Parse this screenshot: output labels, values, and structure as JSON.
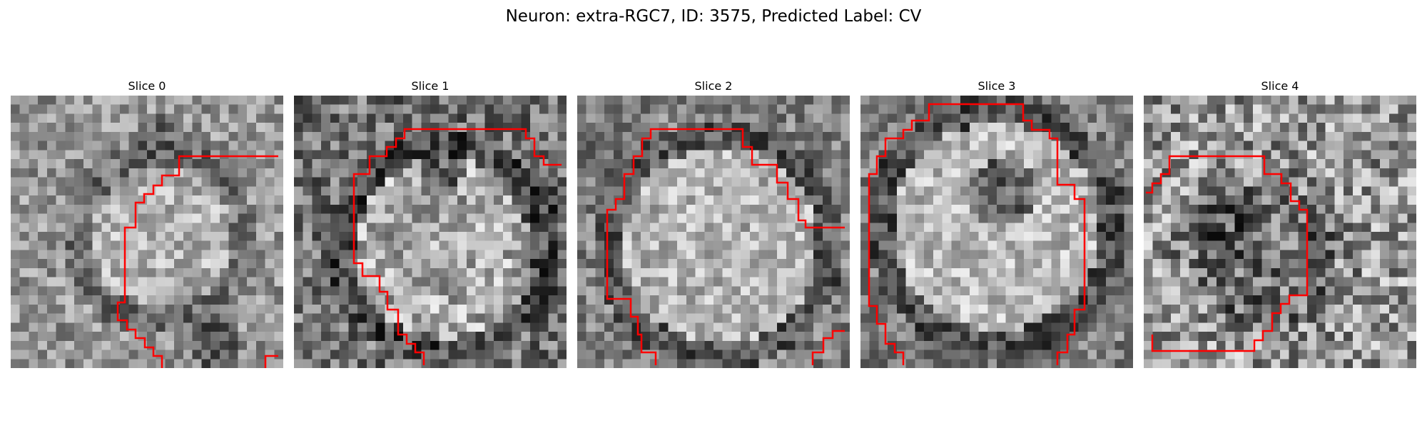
{
  "figure": {
    "title": "Neuron: extra-RGC7, ID: 3575, Predicted Label: CV"
  },
  "colors": {
    "contour": "#ff0000",
    "colormap": "gray"
  },
  "panels": [
    {
      "title": "Slice 0"
    },
    {
      "title": "Slice 1"
    },
    {
      "title": "Slice 2"
    },
    {
      "title": "Slice 3"
    },
    {
      "title": "Slice 4"
    }
  ]
}
